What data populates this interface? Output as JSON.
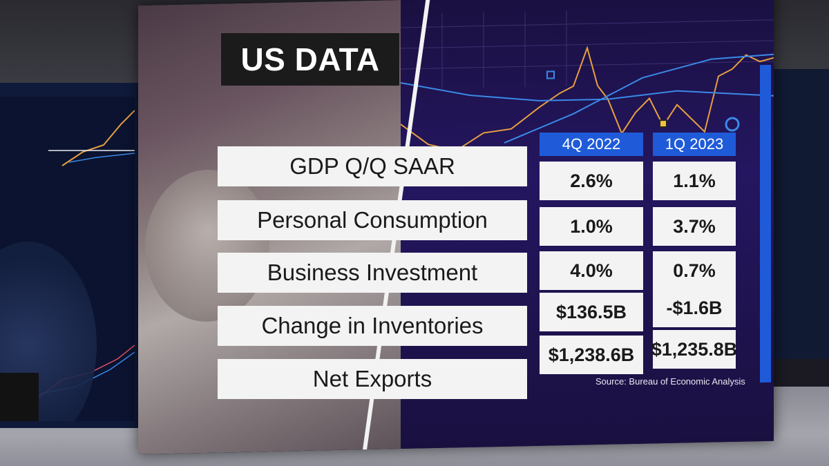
{
  "title": "US DATA",
  "columns": [
    "4Q 2022",
    "1Q 2023"
  ],
  "rows": [
    {
      "label": "GDP Q/Q SAAR",
      "values": [
        "2.6%",
        "1.1%"
      ]
    },
    {
      "label": "Personal Consumption",
      "values": [
        "1.0%",
        "3.7%"
      ]
    },
    {
      "label": "Business Investment",
      "values": [
        "4.0%",
        "0.7%"
      ]
    },
    {
      "label": "Change in Inventories",
      "values": [
        "$136.5B",
        "-$1.6B"
      ]
    },
    {
      "label": "Net Exports",
      "values": [
        "$1,238.6B",
        "$1,235.8B"
      ]
    }
  ],
  "source": "Source: Bureau of Economic Analysis",
  "colors": {
    "header_blue": "#1f5bd8",
    "title_bg": "#1b1b1b",
    "cell_bg": "#f3f3f3",
    "chart_bg": "#1a1040",
    "line_orange": "#e8a040",
    "line_blue": "#3a8ae8"
  }
}
